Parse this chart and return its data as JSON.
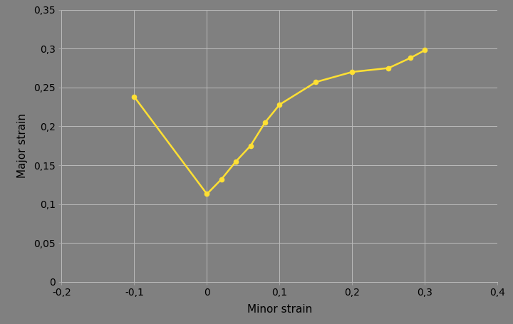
{
  "x": [
    -0.1,
    0.0,
    0.02,
    0.04,
    0.06,
    0.08,
    0.1,
    0.15,
    0.2,
    0.25,
    0.28,
    0.3
  ],
  "y": [
    0.238,
    0.113,
    0.132,
    0.155,
    0.175,
    0.205,
    0.228,
    0.257,
    0.27,
    0.275,
    0.288,
    0.298
  ],
  "line_color": "#FFE033",
  "marker_color": "#FFE033",
  "bg_color": "#808080",
  "plot_bg_color": "#808080",
  "xlabel": "Minor strain",
  "ylabel": "Major strain",
  "xlim": [
    -0.2,
    0.4
  ],
  "ylim": [
    0,
    0.35
  ],
  "xticks": [
    -0.2,
    -0.1,
    0.0,
    0.1,
    0.2,
    0.3,
    0.4
  ],
  "yticks": [
    0,
    0.05,
    0.1,
    0.15,
    0.2,
    0.25,
    0.3,
    0.35
  ],
  "figsize": [
    7.2,
    4.55
  ],
  "dpi": 100
}
